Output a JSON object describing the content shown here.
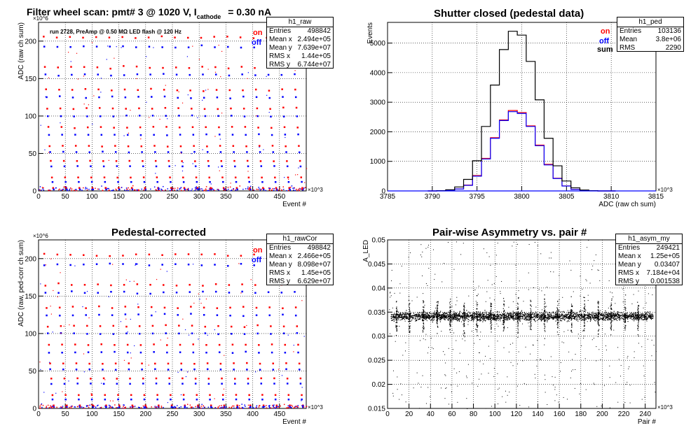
{
  "panels": {
    "p1": {
      "title_parts": [
        "Filter wheel scan: pmt#   3 @  1020 V, I",
        "cathode",
        "= 0.30 nA"
      ],
      "annotation": "run 2728, PreAmp @ 0.50 MΩ   LED flash @  120 Hz",
      "legend": {
        "on": "on",
        "off": "off"
      },
      "stats": {
        "name": "h1_raw",
        "rows": [
          [
            "Entries",
            "498842"
          ],
          [
            "Mean x",
            "2.494e+05"
          ],
          [
            "Mean y",
            "7.639e+07"
          ],
          [
            "RMS x",
            "1.44e+05"
          ],
          [
            "RMS y",
            "6.744e+07"
          ]
        ]
      }
    },
    "p2": {
      "title": "Shutter closed (pedestal data)",
      "legend": {
        "on": "on",
        "off": "off",
        "sum": "sum"
      },
      "stats": {
        "name": "h1_ped",
        "rows": [
          [
            "Entries",
            "103136"
          ],
          [
            "Mean",
            "3.8e+06"
          ],
          [
            "RMS",
            "2290"
          ]
        ]
      }
    },
    "p3": {
      "title": "Pedestal-corrected",
      "legend": {
        "on": "on",
        "off": "off"
      },
      "stats": {
        "name": "h1_rawCor",
        "rows": [
          [
            "Entries",
            "498842"
          ],
          [
            "Mean x",
            "2.466e+05"
          ],
          [
            "Mean y",
            "8.098e+07"
          ],
          [
            "RMS x",
            "1.45e+05"
          ],
          [
            "RMS y",
            "6.629e+07"
          ]
        ]
      }
    },
    "p4": {
      "title": "Pair-wise Asymmetry vs. pair #",
      "stats": {
        "name": "h1_asym_my",
        "rows": [
          [
            "Entries",
            "249421"
          ],
          [
            "Mean x",
            "1.25e+05"
          ],
          [
            "Mean y",
            "0.03407"
          ],
          [
            "RMS x",
            "7.184e+04"
          ],
          [
            "RMS y",
            "0.001538"
          ]
        ]
      }
    }
  },
  "colors": {
    "on": "#ff0000",
    "off": "#0000ff",
    "sum": "#000000"
  },
  "chart_data": [
    {
      "type": "scatter",
      "title": "Filter wheel scan: pmt#   3 @  1020 V, I cathode = 0.30 nA",
      "xlabel": "Event #",
      "ylabel": "ADC (raw ch sum)",
      "x_exponent": "×10^3",
      "y_exponent": "×10^6",
      "xlim": [
        0,
        500
      ],
      "ylim": [
        0,
        225
      ],
      "grid": true,
      "legend": "top-right",
      "xticks": [
        "0",
        "50",
        "100",
        "150",
        "200",
        "250",
        "300",
        "350",
        "400",
        "450"
      ],
      "yticks": [
        "0",
        "50",
        "100",
        "150",
        "200"
      ],
      "on_levels": [
        205,
        165,
        135,
        110,
        85,
        60,
        40,
        18,
        4
      ],
      "off_levels": [
        192,
        155,
        125,
        100,
        75,
        52,
        33,
        12,
        2
      ]
    },
    {
      "type": "line",
      "title": "Shutter closed (pedestal data)",
      "xlabel": "ADC (raw ch sum)",
      "ylabel": "Events",
      "x_exponent": "×10^3",
      "xlim": [
        3785,
        3815
      ],
      "ylim": [
        0,
        5700
      ],
      "grid": true,
      "legend": "top-right",
      "xticks": [
        "3785",
        "3790",
        "3795",
        "3800",
        "3805",
        "3810",
        "3815"
      ],
      "yticks": [
        "0",
        "1000",
        "2000",
        "3000",
        "4000",
        "5000"
      ],
      "x": [
        3790,
        3791,
        3792,
        3793,
        3794,
        3795,
        3796,
        3797,
        3798,
        3799,
        3800,
        3801,
        3802,
        3803,
        3804,
        3805,
        3806,
        3807,
        3808,
        3809,
        3810
      ],
      "series": [
        {
          "name": "on",
          "values": [
            0,
            5,
            20,
            70,
            200,
            520,
            1100,
            1800,
            2400,
            2720,
            2650,
            2200,
            1550,
            900,
            430,
            170,
            55,
            15,
            5,
            0,
            0
          ]
        },
        {
          "name": "off",
          "values": [
            0,
            5,
            20,
            65,
            190,
            500,
            1080,
            1780,
            2380,
            2680,
            2620,
            2180,
            1530,
            880,
            420,
            165,
            50,
            15,
            5,
            0,
            0
          ]
        },
        {
          "name": "sum",
          "values": [
            0,
            10,
            40,
            135,
            390,
            1020,
            2180,
            3580,
            4780,
            5400,
            5270,
            4380,
            3080,
            1780,
            850,
            335,
            105,
            30,
            10,
            0,
            0
          ]
        }
      ]
    },
    {
      "type": "scatter",
      "title": "Pedestal-corrected",
      "xlabel": "Event #",
      "ylabel": "ADC (raw, ped-corr ch sum)",
      "x_exponent": "×10^3",
      "y_exponent": "×10^6",
      "xlim": [
        0,
        500
      ],
      "ylim": [
        0,
        225
      ],
      "grid": true,
      "legend": "top-right",
      "xticks": [
        "0",
        "50",
        "100",
        "150",
        "200",
        "250",
        "300",
        "350",
        "400",
        "450"
      ],
      "yticks": [
        "0",
        "50",
        "100",
        "150",
        "200"
      ],
      "on_levels": [
        205,
        165,
        135,
        110,
        85,
        60,
        40,
        18,
        4
      ],
      "off_levels": [
        192,
        155,
        125,
        100,
        75,
        52,
        33,
        12,
        2
      ]
    },
    {
      "type": "scatter",
      "title": "Pair-wise Asymmetry vs. pair #",
      "xlabel": "Pair #",
      "ylabel": "A_LED",
      "x_exponent": "×10^3",
      "xlim": [
        0,
        250
      ],
      "ylim": [
        0.015,
        0.05
      ],
      "grid": true,
      "legend": "top-right",
      "xticks": [
        "0",
        "20",
        "40",
        "60",
        "80",
        "100",
        "120",
        "140",
        "160",
        "180",
        "200",
        "220",
        "240"
      ],
      "yticks": [
        "0.015",
        "0.02",
        "0.025",
        "0.03",
        "0.035",
        "0.04",
        "0.045",
        "0.05"
      ],
      "band_center": 0.0342,
      "band_halfwidth": 0.0012,
      "spike_x": [
        8,
        20,
        33,
        46,
        58,
        71,
        83,
        96,
        108,
        121,
        133,
        146,
        158,
        171,
        183,
        196,
        208,
        221,
        233
      ]
    }
  ]
}
